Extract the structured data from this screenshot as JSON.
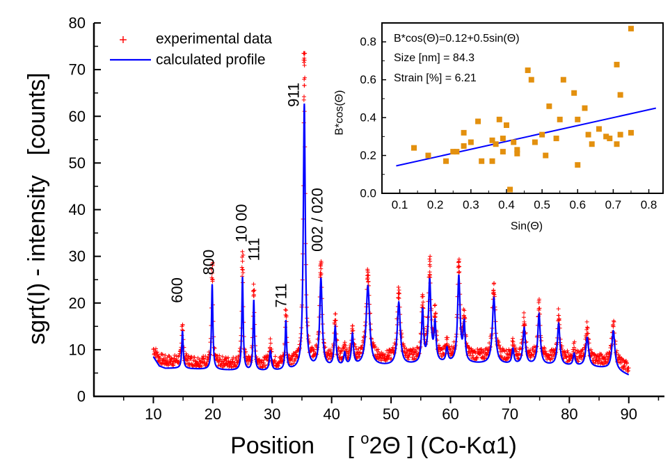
{
  "chart_data": [
    {
      "type": "line",
      "xlabel_main": "Position",
      "xlabel_bracket_open": "[ ",
      "xlabel_sup": "o",
      "xlabel_theta": "2Θ ] (Co-Kα1)",
      "ylabel": "sgrt(I) - intensity   [counts]",
      "xlim": [
        0,
        96
      ],
      "ylim": [
        0,
        80
      ],
      "xticks": [
        10,
        20,
        30,
        40,
        50,
        60,
        70,
        80,
        90
      ],
      "yticks": [
        0,
        10,
        20,
        30,
        40,
        50,
        60,
        70,
        80
      ],
      "legend": {
        "placement": "top-left",
        "entries": [
          {
            "label": "experimental data",
            "marker": "+",
            "color": "#ff0000"
          },
          {
            "label": "calculated profile",
            "marker": "line",
            "color": "#0000ff"
          }
        ]
      },
      "baseline": [
        [
          10,
          8.5
        ],
        [
          11,
          6.5
        ],
        [
          12,
          6.0
        ],
        [
          14,
          6.0
        ],
        [
          18,
          5.8
        ],
        [
          22,
          5.6
        ],
        [
          26,
          5.4
        ],
        [
          30,
          5.4
        ],
        [
          34,
          5.6
        ],
        [
          38,
          6.0
        ],
        [
          42,
          6.3
        ],
        [
          46,
          6.5
        ],
        [
          50,
          6.5
        ],
        [
          54,
          6.8
        ],
        [
          58,
          7.0
        ],
        [
          62,
          7.0
        ],
        [
          66,
          6.9
        ],
        [
          70,
          6.8
        ],
        [
          74,
          6.7
        ],
        [
          78,
          6.6
        ],
        [
          82,
          6.4
        ],
        [
          86,
          6.0
        ],
        [
          88,
          5.5
        ],
        [
          90,
          4.5
        ]
      ],
      "peaks": [
        {
          "x": 14.9,
          "y": 14.0,
          "w": 0.14
        },
        {
          "x": 19.9,
          "y": 24.0,
          "w": 0.14
        },
        {
          "x": 25.0,
          "y": 25.5,
          "w": 0.14
        },
        {
          "x": 26.9,
          "y": 20.5,
          "w": 0.14
        },
        {
          "x": 29.7,
          "y": 9.5,
          "w": 0.2
        },
        {
          "x": 32.3,
          "y": 16.0,
          "w": 0.14
        },
        {
          "x": 35.4,
          "y": 62.5,
          "w": 0.2
        },
        {
          "x": 38.2,
          "y": 25.0,
          "w": 0.25
        },
        {
          "x": 40.6,
          "y": 14.5,
          "w": 0.2
        },
        {
          "x": 42.2,
          "y": 9.0,
          "w": 0.2
        },
        {
          "x": 43.5,
          "y": 13.0,
          "w": 0.2
        },
        {
          "x": 46.1,
          "y": 23.5,
          "w": 0.35
        },
        {
          "x": 51.3,
          "y": 20.0,
          "w": 0.3
        },
        {
          "x": 55.3,
          "y": 18.0,
          "w": 0.2
        },
        {
          "x": 56.5,
          "y": 24.5,
          "w": 0.25
        },
        {
          "x": 57.4,
          "y": 15.0,
          "w": 0.2
        },
        {
          "x": 59.4,
          "y": 10.0,
          "w": 0.2
        },
        {
          "x": 61.4,
          "y": 25.5,
          "w": 0.25
        },
        {
          "x": 62.3,
          "y": 15.0,
          "w": 0.2
        },
        {
          "x": 67.3,
          "y": 21.0,
          "w": 0.3
        },
        {
          "x": 70.5,
          "y": 10.0,
          "w": 0.2
        },
        {
          "x": 72.4,
          "y": 14.5,
          "w": 0.25
        },
        {
          "x": 74.9,
          "y": 17.5,
          "w": 0.25
        },
        {
          "x": 78.2,
          "y": 15.5,
          "w": 0.25
        },
        {
          "x": 80.8,
          "y": 9.0,
          "w": 0.2
        },
        {
          "x": 83.0,
          "y": 12.5,
          "w": 0.3
        },
        {
          "x": 87.4,
          "y": 14.0,
          "w": 0.3
        }
      ],
      "annotations": [
        {
          "text": "600",
          "x": 14.0,
          "y": 20.0,
          "rotate": true
        },
        {
          "text": "800",
          "x": 19.3,
          "y": 26.0,
          "rotate": true
        },
        {
          "text": "10 00",
          "x": 24.8,
          "y": 33.0,
          "rotate": true
        },
        {
          "text": "111",
          "x": 26.9,
          "y": 29.0,
          "rotate": true
        },
        {
          "text": "711",
          "x": 31.5,
          "y": 19.0,
          "rotate": true
        },
        {
          "text": "911",
          "x": 33.6,
          "y": 62.0,
          "rotate": true
        },
        {
          "text": "002 / 020",
          "x": 37.6,
          "y": 31.0,
          "rotate": true
        }
      ]
    },
    {
      "type": "scatter",
      "title_lines": [
        "B*cos(Θ)=0.12+0.5sin(Θ)",
        "Size [nm] = 84.3",
        "Strain [%] = 6.21"
      ],
      "xlabel": "Sin(Θ)",
      "ylabel": "B*cos(Θ)",
      "xlim": [
        0.05,
        0.84
      ],
      "ylim": [
        0.0,
        0.9
      ],
      "xticks": [
        0.1,
        0.2,
        0.3,
        0.4,
        0.5,
        0.6,
        0.7,
        0.8
      ],
      "yticks": [
        0.0,
        0.2,
        0.4,
        0.6,
        0.8
      ],
      "marker_color": "#e3900e",
      "fit_color": "#0000ff",
      "fit": {
        "intercept": 0.12,
        "slope": 0.5
      },
      "fit_x_range": [
        0.09,
        0.82
      ],
      "points": [
        [
          0.14,
          0.24
        ],
        [
          0.18,
          0.2
        ],
        [
          0.23,
          0.17
        ],
        [
          0.25,
          0.22
        ],
        [
          0.26,
          0.22
        ],
        [
          0.28,
          0.32
        ],
        [
          0.28,
          0.25
        ],
        [
          0.3,
          0.27
        ],
        [
          0.32,
          0.38
        ],
        [
          0.33,
          0.17
        ],
        [
          0.36,
          0.28
        ],
        [
          0.36,
          0.17
        ],
        [
          0.37,
          0.26
        ],
        [
          0.38,
          0.39
        ],
        [
          0.39,
          0.29
        ],
        [
          0.39,
          0.22
        ],
        [
          0.4,
          0.36
        ],
        [
          0.41,
          0.02
        ],
        [
          0.42,
          0.27
        ],
        [
          0.43,
          0.23
        ],
        [
          0.43,
          0.21
        ],
        [
          0.46,
          0.65
        ],
        [
          0.47,
          0.6
        ],
        [
          0.48,
          0.27
        ],
        [
          0.5,
          0.31
        ],
        [
          0.51,
          0.2
        ],
        [
          0.52,
          0.46
        ],
        [
          0.54,
          0.29
        ],
        [
          0.55,
          0.39
        ],
        [
          0.56,
          0.6
        ],
        [
          0.59,
          0.53
        ],
        [
          0.6,
          0.39
        ],
        [
          0.6,
          0.15
        ],
        [
          0.62,
          0.45
        ],
        [
          0.63,
          0.31
        ],
        [
          0.64,
          0.26
        ],
        [
          0.66,
          0.34
        ],
        [
          0.68,
          0.3
        ],
        [
          0.69,
          0.29
        ],
        [
          0.71,
          0.68
        ],
        [
          0.71,
          0.26
        ],
        [
          0.72,
          0.52
        ],
        [
          0.72,
          0.31
        ],
        [
          0.75,
          0.32
        ],
        [
          0.75,
          0.87
        ]
      ]
    }
  ]
}
